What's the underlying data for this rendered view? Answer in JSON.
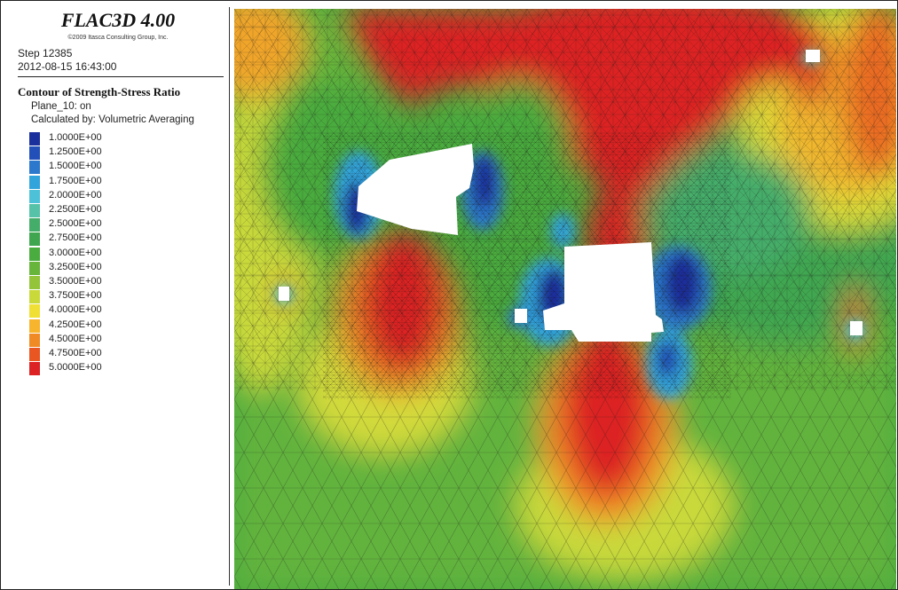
{
  "legend": {
    "app_title": "FLAC3D 4.00",
    "copyright": "©2009 Itasca Consulting Group, Inc.",
    "step": "Step 12385",
    "timestamp": "2012-08-15 16:43:00",
    "contour_title": "Contour of Strength-Stress Ratio",
    "plane": "Plane_10: on",
    "calculated_by": "Calculated by: Volumetric Averaging",
    "levels": [
      {
        "label": "1.0000E+00",
        "color": "#1b2f9c"
      },
      {
        "label": "1.2500E+00",
        "color": "#2350b8"
      },
      {
        "label": "1.5000E+00",
        "color": "#2b78cc"
      },
      {
        "label": "1.7500E+00",
        "color": "#32a4dc"
      },
      {
        "label": "2.0000E+00",
        "color": "#4cc1d8"
      },
      {
        "label": "2.2500E+00",
        "color": "#56c2a8"
      },
      {
        "label": "2.5000E+00",
        "color": "#45ad6a"
      },
      {
        "label": "2.7500E+00",
        "color": "#3fa64f"
      },
      {
        "label": "3.0000E+00",
        "color": "#4aab3e"
      },
      {
        "label": "3.2500E+00",
        "color": "#67b53a"
      },
      {
        "label": "3.5000E+00",
        "color": "#93c43a"
      },
      {
        "label": "3.7500E+00",
        "color": "#c9d93a"
      },
      {
        "label": "4.0000E+00",
        "color": "#f0e036"
      },
      {
        "label": "4.2500E+00",
        "color": "#f6b52c"
      },
      {
        "label": "4.5000E+00",
        "color": "#f08a25"
      },
      {
        "label": "4.7500E+00",
        "color": "#ea5622"
      },
      {
        "label": "5.0000E+00",
        "color": "#dc2222"
      }
    ]
  },
  "plot": {
    "openings": [
      {
        "name": "upper-left-chamber"
      },
      {
        "name": "central-chamber"
      },
      {
        "name": "small-left-tunnel"
      },
      {
        "name": "small-right-tunnel"
      },
      {
        "name": "small-top-tunnel"
      },
      {
        "name": "central-side-drift"
      }
    ]
  }
}
